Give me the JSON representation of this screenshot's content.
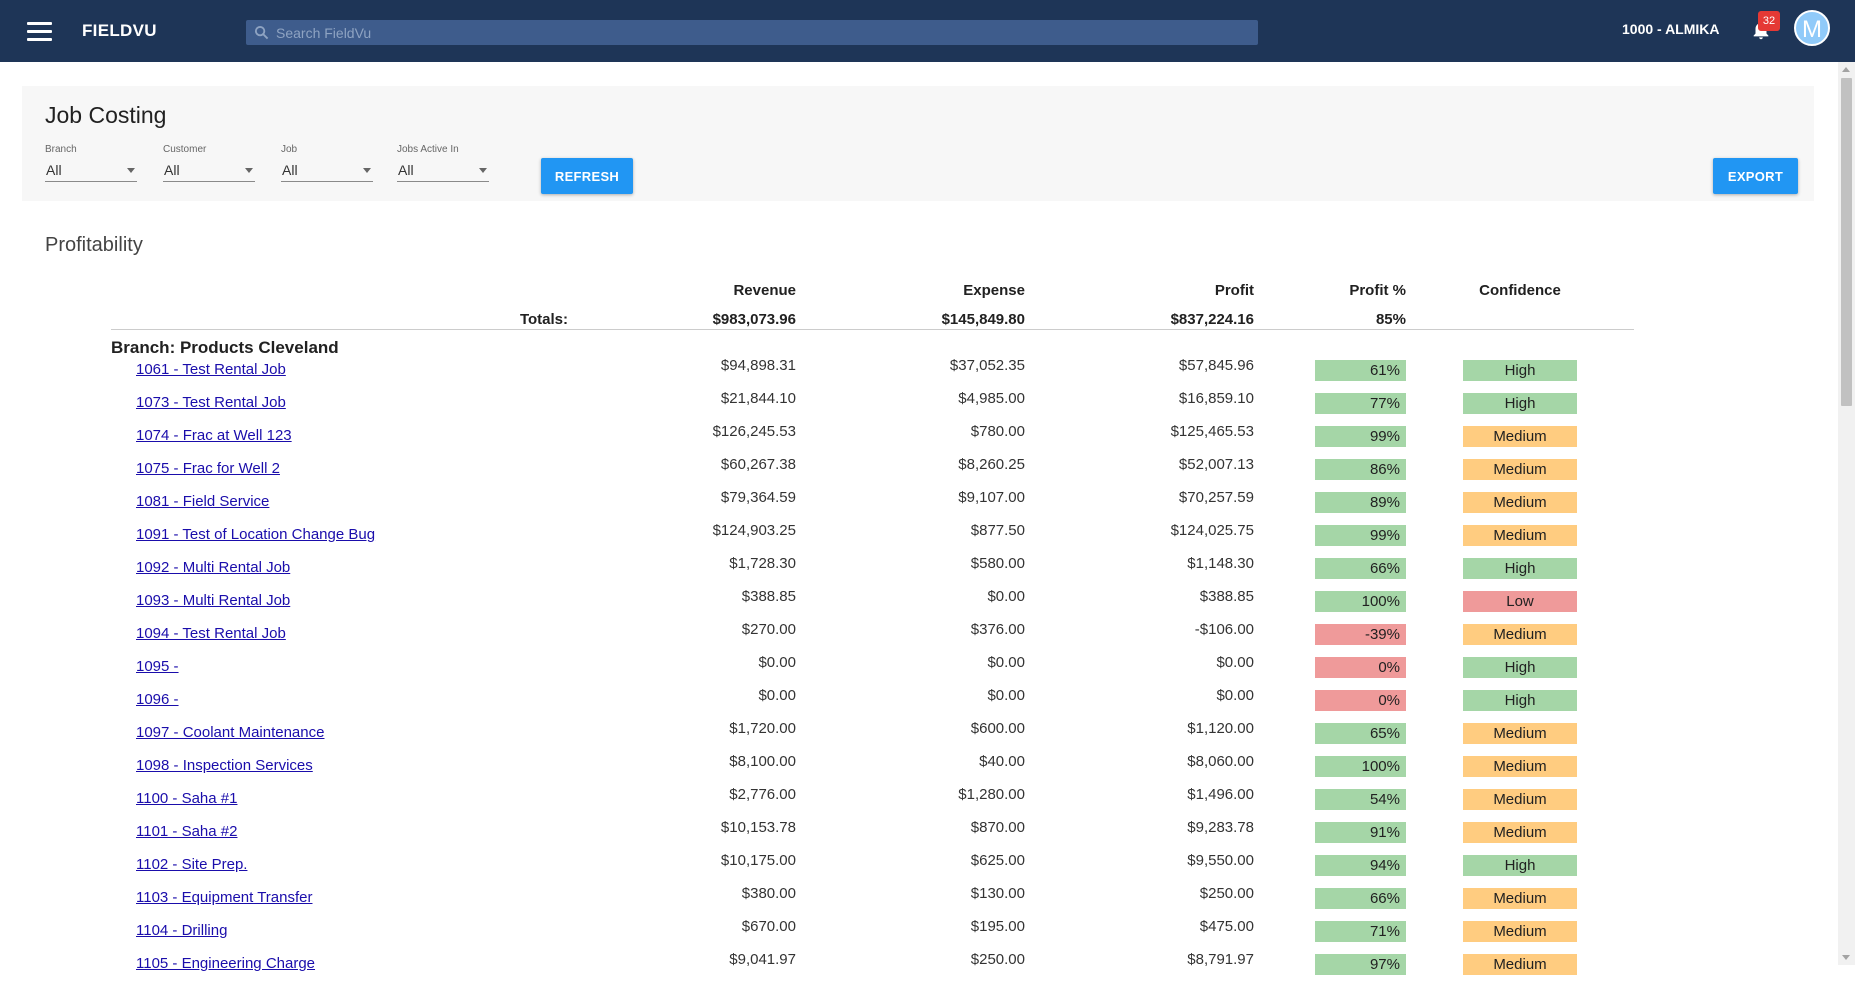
{
  "app": {
    "brand": "FIELDVU",
    "search_placeholder": "Search FieldVu",
    "company": "1000 - ALMIKA",
    "notification_count": "32",
    "avatar_initial": "M"
  },
  "header": {
    "title": "Job Costing",
    "filters": [
      {
        "label": "Branch",
        "value": "All"
      },
      {
        "label": "Customer",
        "value": "All"
      },
      {
        "label": "Job",
        "value": "All"
      },
      {
        "label": "Jobs Active In",
        "value": "All"
      }
    ],
    "refresh_label": "REFRESH",
    "export_label": "EXPORT"
  },
  "section_title": "Profitability",
  "table": {
    "columns": {
      "revenue": "Revenue",
      "expense": "Expense",
      "profit": "Profit",
      "profit_pct": "Profit %",
      "confidence": "Confidence"
    },
    "totals_label": "Totals:",
    "totals": {
      "revenue": "$983,073.96",
      "expense": "$145,849.80",
      "profit": "$837,224.16",
      "profit_pct": "85%"
    },
    "branch_label": "Branch: Products Cleveland",
    "rows": [
      {
        "job": "1061 - Test Rental Job",
        "revenue": "$94,898.31",
        "expense": "$37,052.35",
        "profit": "$57,845.96",
        "pct": "61%",
        "pct_color": "green",
        "confidence": "High",
        "conf_color": "green"
      },
      {
        "job": "1073 - Test Rental Job",
        "revenue": "$21,844.10",
        "expense": "$4,985.00",
        "profit": "$16,859.10",
        "pct": "77%",
        "pct_color": "green",
        "confidence": "High",
        "conf_color": "green"
      },
      {
        "job": "1074 - Frac at Well 123",
        "revenue": "$126,245.53",
        "expense": "$780.00",
        "profit": "$125,465.53",
        "pct": "99%",
        "pct_color": "green",
        "confidence": "Medium",
        "conf_color": "orange"
      },
      {
        "job": "1075 - Frac for Well 2",
        "revenue": "$60,267.38",
        "expense": "$8,260.25",
        "profit": "$52,007.13",
        "pct": "86%",
        "pct_color": "green",
        "confidence": "Medium",
        "conf_color": "orange"
      },
      {
        "job": "1081 - Field Service",
        "revenue": "$79,364.59",
        "expense": "$9,107.00",
        "profit": "$70,257.59",
        "pct": "89%",
        "pct_color": "green",
        "confidence": "Medium",
        "conf_color": "orange"
      },
      {
        "job": "1091 - Test of Location Change Bug",
        "revenue": "$124,903.25",
        "expense": "$877.50",
        "profit": "$124,025.75",
        "pct": "99%",
        "pct_color": "green",
        "confidence": "Medium",
        "conf_color": "orange"
      },
      {
        "job": "1092 - Multi Rental Job",
        "revenue": "$1,728.30",
        "expense": "$580.00",
        "profit": "$1,148.30",
        "pct": "66%",
        "pct_color": "green",
        "confidence": "High",
        "conf_color": "green"
      },
      {
        "job": "1093 - Multi Rental Job",
        "revenue": "$388.85",
        "expense": "$0.00",
        "profit": "$388.85",
        "pct": "100%",
        "pct_color": "green",
        "confidence": "Low",
        "conf_color": "red"
      },
      {
        "job": "1094 - Test Rental Job",
        "revenue": "$270.00",
        "expense": "$376.00",
        "profit": "-$106.00",
        "pct": "-39%",
        "pct_color": "red",
        "confidence": "Medium",
        "conf_color": "orange"
      },
      {
        "job": "1095 -",
        "revenue": "$0.00",
        "expense": "$0.00",
        "profit": "$0.00",
        "pct": "0%",
        "pct_color": "red",
        "confidence": "High",
        "conf_color": "green"
      },
      {
        "job": "1096 -",
        "revenue": "$0.00",
        "expense": "$0.00",
        "profit": "$0.00",
        "pct": "0%",
        "pct_color": "red",
        "confidence": "High",
        "conf_color": "green"
      },
      {
        "job": "1097 - Coolant Maintenance",
        "revenue": "$1,720.00",
        "expense": "$600.00",
        "profit": "$1,120.00",
        "pct": "65%",
        "pct_color": "green",
        "confidence": "Medium",
        "conf_color": "orange"
      },
      {
        "job": "1098 - Inspection Services",
        "revenue": "$8,100.00",
        "expense": "$40.00",
        "profit": "$8,060.00",
        "pct": "100%",
        "pct_color": "green",
        "confidence": "Medium",
        "conf_color": "orange"
      },
      {
        "job": "1100 - Saha #1",
        "revenue": "$2,776.00",
        "expense": "$1,280.00",
        "profit": "$1,496.00",
        "pct": "54%",
        "pct_color": "green",
        "confidence": "Medium",
        "conf_color": "orange"
      },
      {
        "job": "1101 - Saha #2",
        "revenue": "$10,153.78",
        "expense": "$870.00",
        "profit": "$9,283.78",
        "pct": "91%",
        "pct_color": "green",
        "confidence": "Medium",
        "conf_color": "orange"
      },
      {
        "job": "1102 - Site Prep.",
        "revenue": "$10,175.00",
        "expense": "$625.00",
        "profit": "$9,550.00",
        "pct": "94%",
        "pct_color": "green",
        "confidence": "High",
        "conf_color": "green"
      },
      {
        "job": "1103 - Equipment Transfer",
        "revenue": "$380.00",
        "expense": "$130.00",
        "profit": "$250.00",
        "pct": "66%",
        "pct_color": "green",
        "confidence": "Medium",
        "conf_color": "orange"
      },
      {
        "job": "1104 - Drilling",
        "revenue": "$670.00",
        "expense": "$195.00",
        "profit": "$475.00",
        "pct": "71%",
        "pct_color": "green",
        "confidence": "Medium",
        "conf_color": "orange"
      },
      {
        "job": "1105 - Engineering Charge",
        "revenue": "$9,041.97",
        "expense": "$250.00",
        "profit": "$8,791.97",
        "pct": "97%",
        "pct_color": "green",
        "confidence": "Medium",
        "conf_color": "orange"
      }
    ]
  },
  "colors": {
    "topbar": "#1e3557",
    "accent": "#2196f3",
    "green": "#a5d6a7",
    "red": "#ef9a9a",
    "orange": "#ffcc80",
    "link": "#1a0dab"
  }
}
